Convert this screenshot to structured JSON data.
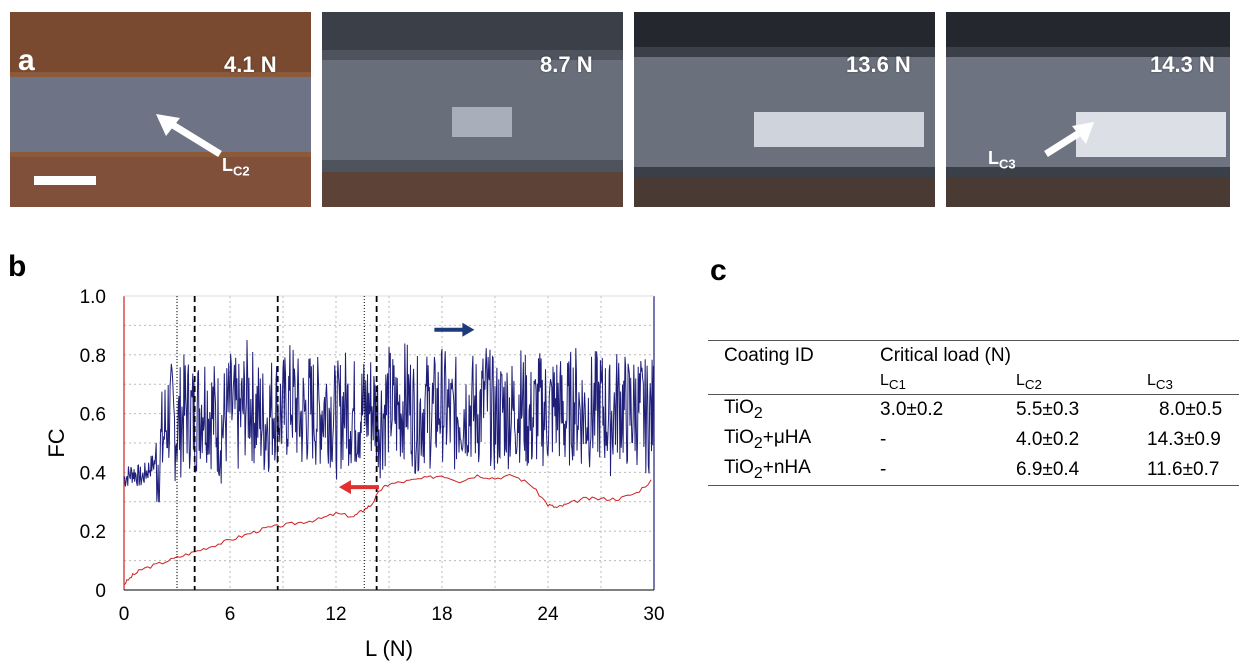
{
  "panel_a": {
    "letter": "a",
    "images": [
      {
        "load_label": "4.1 N",
        "arrow_label": "L",
        "arrow_sub": "C2"
      },
      {
        "load_label": "8.7 N"
      },
      {
        "load_label": "13.6 N"
      },
      {
        "load_label": "14.3 N",
        "arrow_label": "L",
        "arrow_sub": "C3"
      }
    ]
  },
  "panel_b": {
    "letter": "b"
  },
  "panel_c": {
    "letter": "c",
    "header": {
      "col1": "Coating ID",
      "col2": "Critical load (N)"
    },
    "subheaders": [
      {
        "main": "L",
        "sub": "C1"
      },
      {
        "main": "L",
        "sub": "C2"
      },
      {
        "main": "L",
        "sub": "C3"
      }
    ],
    "rows": [
      {
        "id_main": "TiO",
        "id_sub": "2",
        "id_suffix": "",
        "lc1": "3.0±0.2",
        "lc2": "5.5±0.3",
        "lc3": "8.0±0.5"
      },
      {
        "id_main": "TiO",
        "id_sub": "2",
        "id_suffix": "+μHA",
        "lc1": "-",
        "lc2": "4.0±0.2",
        "lc3": "14.3±0.9"
      },
      {
        "id_main": "TiO",
        "id_sub": "2",
        "id_suffix": "+nHA",
        "lc1": "-",
        "lc2": "6.9±0.4",
        "lc3": "11.6±0.7"
      }
    ]
  },
  "chart_data": {
    "type": "line",
    "xlabel": "L (N)",
    "ylabel": "FC",
    "xlim": [
      0,
      30
    ],
    "ylim": [
      0,
      1.0
    ],
    "xticks": [
      "0",
      "6",
      "12",
      "18",
      "24",
      "30"
    ],
    "yticks": [
      "0",
      "0.2",
      "0.4",
      "0.6",
      "0.8",
      "1.0"
    ],
    "grid": true,
    "vlines_dashed": [
      4.0,
      8.7,
      14.3
    ],
    "vlines_dotted": [
      3.0,
      13.6
    ],
    "series": [
      {
        "color": "#1f1f7a",
        "x": [
          0,
          0.5,
          1,
          1.5,
          2,
          2.5,
          3,
          3.5,
          4,
          4.5,
          5,
          5.5,
          6,
          6.5,
          7,
          7.5,
          8,
          8.5,
          9,
          9.5,
          10,
          10.5,
          11,
          11.5,
          12,
          12.5,
          13,
          13.5,
          14,
          14.5,
          15,
          15.5,
          16,
          16.5,
          17,
          17.5,
          18,
          18.5,
          19,
          19.5,
          20,
          20.5,
          21,
          21.5,
          22,
          22.5,
          23,
          23.5,
          24,
          24.5,
          25,
          25.5,
          26,
          26.5,
          27,
          27.5,
          28,
          28.5,
          29,
          29.5,
          30
        ],
        "y": [
          0.38,
          0.4,
          0.38,
          0.42,
          0.45,
          0.6,
          0.55,
          0.62,
          0.58,
          0.65,
          0.6,
          0.55,
          0.62,
          0.58,
          0.66,
          0.6,
          0.57,
          0.63,
          0.6,
          0.66,
          0.58,
          0.62,
          0.6,
          0.64,
          0.57,
          0.63,
          0.6,
          0.61,
          0.63,
          0.58,
          0.64,
          0.6,
          0.66,
          0.59,
          0.62,
          0.6,
          0.64,
          0.58,
          0.61,
          0.63,
          0.6,
          0.66,
          0.58,
          0.62,
          0.6,
          0.64,
          0.57,
          0.62,
          0.6,
          0.63,
          0.58,
          0.65,
          0.6,
          0.61,
          0.63,
          0.58,
          0.64,
          0.6,
          0.62,
          0.59,
          0.6
        ],
        "noise_amplitude": 0.2
      },
      {
        "color": "#cc2222",
        "x": [
          0,
          0.5,
          1,
          2,
          3,
          4,
          5,
          6,
          7,
          8,
          9,
          10,
          11,
          12,
          13,
          13.5,
          14,
          14.5,
          15,
          16,
          17,
          18,
          19,
          20,
          21,
          22,
          23,
          24,
          24.5,
          25,
          26,
          27,
          28,
          29,
          30
        ],
        "y": [
          0.02,
          0.05,
          0.07,
          0.09,
          0.11,
          0.13,
          0.15,
          0.17,
          0.19,
          0.21,
          0.22,
          0.23,
          0.24,
          0.26,
          0.25,
          0.27,
          0.29,
          0.34,
          0.36,
          0.37,
          0.38,
          0.39,
          0.37,
          0.39,
          0.38,
          0.39,
          0.36,
          0.29,
          0.28,
          0.29,
          0.31,
          0.31,
          0.31,
          0.33,
          0.38
        ]
      }
    ],
    "annotations": [
      {
        "type": "arrow-right",
        "color": "#1f3a7a",
        "x": 18.7,
        "y": 0.885
      },
      {
        "type": "arrow-left",
        "color": "#e03030",
        "x": 13.3,
        "y": 0.35
      }
    ]
  }
}
